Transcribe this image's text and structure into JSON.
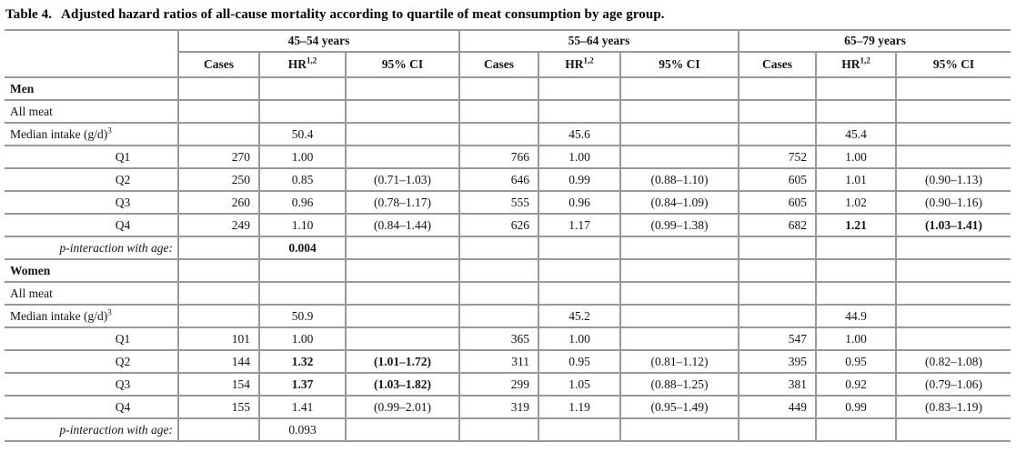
{
  "title": {
    "label": "Table 4.",
    "text": "Adjusted hazard ratios of all-cause mortality according to quartile of meat consumption by age group."
  },
  "colors": {
    "border": "#999999",
    "text": "#141414",
    "background": "#ffffff"
  },
  "table": {
    "age_groups": [
      "45–54 years",
      "55–64 years",
      "65–79 years"
    ],
    "sub_headers": {
      "cases": "Cases",
      "hr": "HR",
      "hr_sup": "1,2",
      "ci": "95% CI"
    },
    "rows": [
      {
        "type": "section",
        "label": "Men",
        "groups": [
          {},
          {},
          {}
        ]
      },
      {
        "type": "plain",
        "label": "All meat",
        "groups": [
          {},
          {},
          {}
        ]
      },
      {
        "type": "median",
        "label": "Median intake (g/d)",
        "label_sup": "3",
        "groups": [
          {
            "hr": "50.4"
          },
          {
            "hr": "45.6"
          },
          {
            "hr": "45.4"
          }
        ]
      },
      {
        "type": "quartile",
        "label": "Q1",
        "groups": [
          {
            "cases": "270",
            "hr": "1.00"
          },
          {
            "cases": "766",
            "hr": "1.00"
          },
          {
            "cases": "752",
            "hr": "1.00"
          }
        ]
      },
      {
        "type": "quartile",
        "label": "Q2",
        "groups": [
          {
            "cases": "250",
            "hr": "0.85",
            "ci": "(0.71–1.03)"
          },
          {
            "cases": "646",
            "hr": "0.99",
            "ci": "(0.88–1.10)"
          },
          {
            "cases": "605",
            "hr": "1.01",
            "ci": "(0.90–1.13)"
          }
        ]
      },
      {
        "type": "quartile",
        "label": "Q3",
        "groups": [
          {
            "cases": "260",
            "hr": "0.96",
            "ci": "(0.78–1.17)"
          },
          {
            "cases": "555",
            "hr": "0.96",
            "ci": "(0.84–1.09)"
          },
          {
            "cases": "605",
            "hr": "1.02",
            "ci": "(0.90–1.16)"
          }
        ]
      },
      {
        "type": "quartile",
        "label": "Q4",
        "groups": [
          {
            "cases": "249",
            "hr": "1.10",
            "ci": "(0.84–1.44)"
          },
          {
            "cases": "626",
            "hr": "1.17",
            "ci": "(0.99–1.38)"
          },
          {
            "cases": "682",
            "hr": "1.21",
            "hr_bold": true,
            "ci": "(1.03–1.41)",
            "ci_bold": true
          }
        ]
      },
      {
        "type": "pinteraction",
        "label": "p-interaction with age:",
        "groups": [
          {
            "hr": "0.004",
            "hr_bold": true
          },
          {},
          {}
        ]
      },
      {
        "type": "section",
        "label": "Women",
        "groups": [
          {},
          {},
          {}
        ]
      },
      {
        "type": "plain",
        "label": "All meat",
        "groups": [
          {},
          {},
          {}
        ]
      },
      {
        "type": "median",
        "label": "Median intake (g/d)",
        "label_sup": "3",
        "groups": [
          {
            "hr": "50.9"
          },
          {
            "hr": "45.2"
          },
          {
            "hr": "44.9"
          }
        ]
      },
      {
        "type": "quartile",
        "label": "Q1",
        "groups": [
          {
            "cases": "101",
            "hr": "1.00"
          },
          {
            "cases": "365",
            "hr": "1.00"
          },
          {
            "cases": "547",
            "hr": "1.00"
          }
        ]
      },
      {
        "type": "quartile",
        "label": "Q2",
        "groups": [
          {
            "cases": "144",
            "hr": "1.32",
            "hr_bold": true,
            "ci": "(1.01–1.72)",
            "ci_bold": true
          },
          {
            "cases": "311",
            "hr": "0.95",
            "ci": "(0.81–1.12)"
          },
          {
            "cases": "395",
            "hr": "0.95",
            "ci": "(0.82–1.08)"
          }
        ]
      },
      {
        "type": "quartile",
        "label": "Q3",
        "groups": [
          {
            "cases": "154",
            "hr": "1.37",
            "hr_bold": true,
            "ci": "(1.03–1.82)",
            "ci_bold": true
          },
          {
            "cases": "299",
            "hr": "1.05",
            "ci": "(0.88–1.25)"
          },
          {
            "cases": "381",
            "hr": "0.92",
            "ci": "(0.79–1.06)"
          }
        ]
      },
      {
        "type": "quartile",
        "label": "Q4",
        "groups": [
          {
            "cases": "155",
            "hr": "1.41",
            "ci": "(0.99–2.01)"
          },
          {
            "cases": "319",
            "hr": "1.19",
            "ci": "(0.95–1.49)"
          },
          {
            "cases": "449",
            "hr": "0.99",
            "ci": "(0.83–1.19)"
          }
        ]
      },
      {
        "type": "pinteraction",
        "label": "p-interaction with age:",
        "groups": [
          {
            "hr": "0.093"
          },
          {},
          {}
        ]
      }
    ]
  }
}
